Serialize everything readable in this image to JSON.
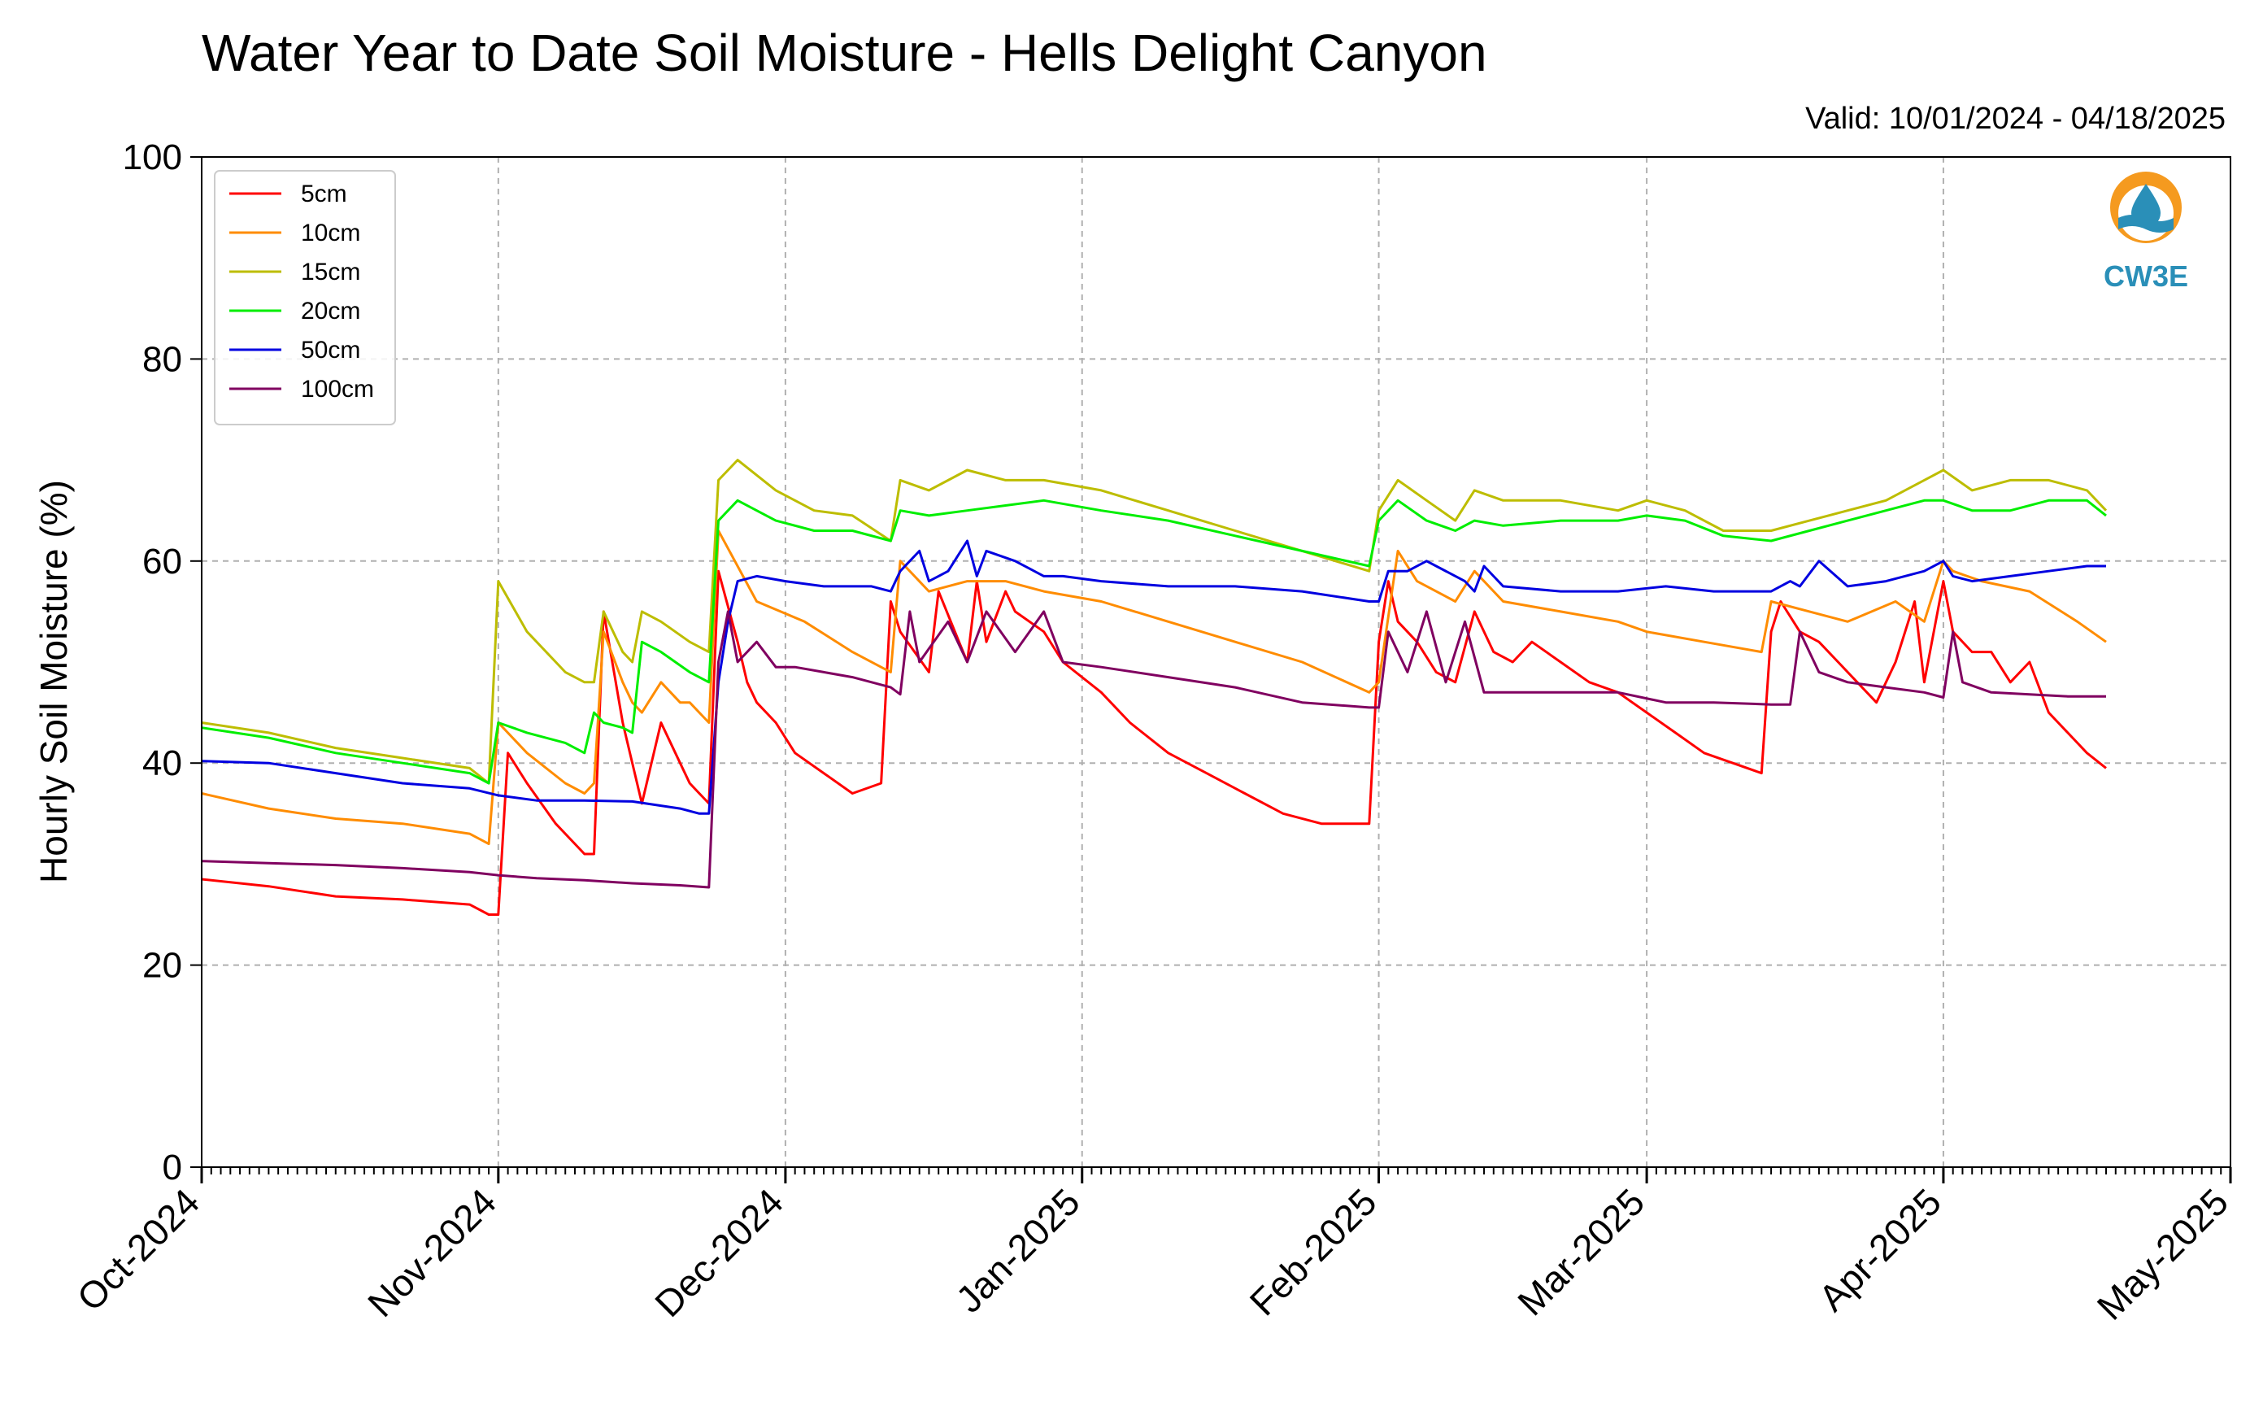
{
  "title": "Water Year to Date Soil Moisture - Hells Delight Canyon",
  "valid_label": "Valid: 10/01/2024 - 04/18/2025",
  "logo": {
    "text": "CW3E",
    "icon": "cw3e-water-drop-logo"
  },
  "chart_data": {
    "type": "line",
    "title": "Water Year to Date Soil Moisture - Hells Delight Canyon",
    "xlabel": "",
    "ylabel": "Hourly Soil Moisture (%)",
    "xlim": [
      "2024-10-01",
      "2025-05-01"
    ],
    "ylim": [
      0,
      100
    ],
    "yticks": [
      0,
      20,
      40,
      60,
      80,
      100
    ],
    "xticks": [
      "2024-10-01",
      "2024-11-01",
      "2024-12-01",
      "2025-01-01",
      "2025-02-01",
      "2025-03-01",
      "2025-04-01",
      "2025-05-01"
    ],
    "xtick_labels": [
      "Oct-2024",
      "Nov-2024",
      "Dec-2024",
      "Jan-2025",
      "Feb-2025",
      "Mar-2025",
      "Apr-2025",
      "May-2025"
    ],
    "grid": true,
    "legend": "top-left",
    "series": [
      {
        "name": "5cm",
        "color": "#ff0000",
        "x": [
          "2024-10-01",
          "2024-10-08",
          "2024-10-15",
          "2024-10-22",
          "2024-10-29",
          "2024-10-31",
          "2024-11-01",
          "2024-11-02",
          "2024-11-04",
          "2024-11-07",
          "2024-11-10",
          "2024-11-11",
          "2024-11-12",
          "2024-11-14",
          "2024-11-15",
          "2024-11-16",
          "2024-11-18",
          "2024-11-20",
          "2024-11-21",
          "2024-11-22",
          "2024-11-23",
          "2024-11-24",
          "2024-11-26",
          "2024-11-27",
          "2024-11-28",
          "2024-11-30",
          "2024-12-02",
          "2024-12-05",
          "2024-12-08",
          "2024-12-11",
          "2024-12-12",
          "2024-12-13",
          "2024-12-16",
          "2024-12-17",
          "2024-12-20",
          "2024-12-21",
          "2024-12-22",
          "2024-12-24",
          "2024-12-25",
          "2024-12-28",
          "2024-12-30",
          "2025-01-03",
          "2025-01-06",
          "2025-01-10",
          "2025-01-14",
          "2025-01-18",
          "2025-01-22",
          "2025-01-26",
          "2025-01-30",
          "2025-01-31",
          "2025-02-01",
          "2025-02-02",
          "2025-02-03",
          "2025-02-05",
          "2025-02-07",
          "2025-02-09",
          "2025-02-11",
          "2025-02-13",
          "2025-02-15",
          "2025-02-17",
          "2025-02-20",
          "2025-02-23",
          "2025-02-26",
          "2025-03-01",
          "2025-03-04",
          "2025-03-07",
          "2025-03-10",
          "2025-03-13",
          "2025-03-14",
          "2025-03-15",
          "2025-03-17",
          "2025-03-19",
          "2025-03-21",
          "2025-03-23",
          "2025-03-25",
          "2025-03-27",
          "2025-03-29",
          "2025-03-30",
          "2025-04-01",
          "2025-04-02",
          "2025-04-04",
          "2025-04-06",
          "2025-04-08",
          "2025-04-10",
          "2025-04-12",
          "2025-04-14",
          "2025-04-16",
          "2025-04-18"
        ],
        "y": [
          28.5,
          27.8,
          26.8,
          26.5,
          26,
          25,
          25,
          41,
          38,
          34,
          31,
          31,
          55,
          44,
          40,
          36,
          44,
          40,
          38,
          37,
          36,
          59,
          52,
          48,
          46,
          44,
          41,
          39,
          37,
          38,
          56,
          53,
          49,
          57,
          50,
          58,
          52,
          57,
          55,
          53,
          50,
          47,
          44,
          41,
          39,
          37,
          35,
          34,
          34,
          34,
          52,
          58,
          54,
          52,
          49,
          48,
          55,
          51,
          50,
          52,
          50,
          48,
          47,
          45,
          43,
          41,
          40,
          39,
          53,
          56,
          53,
          52,
          50,
          48,
          46,
          50,
          56,
          48,
          58,
          53,
          51,
          51,
          48,
          50,
          45,
          43,
          41,
          39.5
        ]
      },
      {
        "name": "10cm",
        "color": "#ff8c00",
        "x": [
          "2024-10-01",
          "2024-10-08",
          "2024-10-15",
          "2024-10-22",
          "2024-10-29",
          "2024-10-31",
          "2024-11-01",
          "2024-11-04",
          "2024-11-08",
          "2024-11-10",
          "2024-11-11",
          "2024-11-12",
          "2024-11-14",
          "2024-11-15",
          "2024-11-16",
          "2024-11-18",
          "2024-11-20",
          "2024-11-21",
          "2024-11-22",
          "2024-11-23",
          "2024-11-24",
          "2024-11-28",
          "2024-12-03",
          "2024-12-08",
          "2024-12-12",
          "2024-12-13",
          "2024-12-16",
          "2024-12-20",
          "2024-12-24",
          "2024-12-28",
          "2025-01-03",
          "2025-01-10",
          "2025-01-17",
          "2025-01-24",
          "2025-01-31",
          "2025-02-01",
          "2025-02-03",
          "2025-02-05",
          "2025-02-09",
          "2025-02-11",
          "2025-02-14",
          "2025-02-20",
          "2025-02-26",
          "2025-03-01",
          "2025-03-07",
          "2025-03-13",
          "2025-03-14",
          "2025-03-18",
          "2025-03-22",
          "2025-03-27",
          "2025-03-30",
          "2025-04-01",
          "2025-04-02",
          "2025-04-05",
          "2025-04-10",
          "2025-04-15",
          "2025-04-18"
        ],
        "y": [
          37,
          35.5,
          34.5,
          34,
          33,
          32,
          44,
          41,
          38,
          37,
          38,
          53,
          48,
          46,
          45,
          48,
          46,
          46,
          45,
          44,
          63,
          56,
          54,
          51,
          49,
          60,
          57,
          58,
          58,
          57,
          56,
          54,
          52,
          50,
          47,
          48,
          61,
          58,
          56,
          59,
          56,
          55,
          54,
          53,
          52,
          51,
          56,
          55,
          54,
          56,
          54,
          60,
          59,
          58,
          57,
          54,
          52
        ]
      },
      {
        "name": "15cm",
        "color": "#bdbd00",
        "x": [
          "2024-10-01",
          "2024-10-08",
          "2024-10-15",
          "2024-10-22",
          "2024-10-29",
          "2024-10-31",
          "2024-11-01",
          "2024-11-04",
          "2024-11-08",
          "2024-11-10",
          "2024-11-11",
          "2024-11-12",
          "2024-11-14",
          "2024-11-15",
          "2024-11-16",
          "2024-11-18",
          "2024-11-21",
          "2024-11-23",
          "2024-11-24",
          "2024-11-26",
          "2024-11-30",
          "2024-12-04",
          "2024-12-08",
          "2024-12-12",
          "2024-12-13",
          "2024-12-16",
          "2024-12-20",
          "2024-12-24",
          "2024-12-28",
          "2025-01-03",
          "2025-01-10",
          "2025-01-17",
          "2025-01-24",
          "2025-01-31",
          "2025-02-01",
          "2025-02-03",
          "2025-02-06",
          "2025-02-09",
          "2025-02-11",
          "2025-02-14",
          "2025-02-20",
          "2025-02-26",
          "2025-03-01",
          "2025-03-05",
          "2025-03-09",
          "2025-03-14",
          "2025-03-18",
          "2025-03-22",
          "2025-03-26",
          "2025-03-30",
          "2025-04-01",
          "2025-04-04",
          "2025-04-08",
          "2025-04-12",
          "2025-04-16",
          "2025-04-18"
        ],
        "y": [
          44,
          43,
          41.5,
          40.5,
          39.5,
          38,
          58,
          53,
          49,
          48,
          48,
          55,
          51,
          50,
          55,
          54,
          52,
          51,
          68,
          70,
          67,
          65,
          64.5,
          62,
          68,
          67,
          69,
          68,
          68,
          67,
          65,
          63,
          61,
          59,
          65,
          68,
          66,
          64,
          67,
          66,
          66,
          65,
          66,
          65,
          63,
          63,
          64,
          65,
          66,
          68,
          69,
          67,
          68,
          68,
          67,
          65
        ]
      },
      {
        "name": "20cm",
        "color": "#00ee00",
        "x": [
          "2024-10-01",
          "2024-10-08",
          "2024-10-15",
          "2024-10-22",
          "2024-10-29",
          "2024-10-31",
          "2024-11-01",
          "2024-11-04",
          "2024-11-08",
          "2024-11-10",
          "2024-11-11",
          "2024-11-12",
          "2024-11-14",
          "2024-11-15",
          "2024-11-16",
          "2024-11-18",
          "2024-11-21",
          "2024-11-23",
          "2024-11-24",
          "2024-11-26",
          "2024-11-30",
          "2024-12-04",
          "2024-12-08",
          "2024-12-12",
          "2024-12-13",
          "2024-12-16",
          "2024-12-20",
          "2024-12-24",
          "2024-12-28",
          "2025-01-03",
          "2025-01-10",
          "2025-01-17",
          "2025-01-24",
          "2025-01-31",
          "2025-02-01",
          "2025-02-03",
          "2025-02-06",
          "2025-02-09",
          "2025-02-11",
          "2025-02-14",
          "2025-02-20",
          "2025-02-26",
          "2025-03-01",
          "2025-03-05",
          "2025-03-09",
          "2025-03-14",
          "2025-03-18",
          "2025-03-22",
          "2025-03-26",
          "2025-03-30",
          "2025-04-01",
          "2025-04-04",
          "2025-04-08",
          "2025-04-12",
          "2025-04-16",
          "2025-04-18"
        ],
        "y": [
          43.5,
          42.5,
          41,
          40,
          39,
          38,
          44,
          43,
          42,
          41,
          45,
          44,
          43.5,
          43,
          52,
          51,
          49,
          48,
          64,
          66,
          64,
          63,
          63,
          62,
          65,
          64.5,
          65,
          65.5,
          66,
          65,
          64,
          62.5,
          61,
          59.5,
          64,
          66,
          64,
          63,
          64,
          63.5,
          64,
          64,
          64.5,
          64,
          62.5,
          62,
          63,
          64,
          65,
          66,
          66,
          65,
          65,
          66,
          66,
          64.5
        ]
      },
      {
        "name": "50cm",
        "color": "#0000e0",
        "x": [
          "2024-10-01",
          "2024-10-08",
          "2024-10-15",
          "2024-10-22",
          "2024-10-29",
          "2024-11-01",
          "2024-11-05",
          "2024-11-10",
          "2024-11-15",
          "2024-11-20",
          "2024-11-22",
          "2024-11-23",
          "2024-11-24",
          "2024-11-25",
          "2024-11-26",
          "2024-11-28",
          "2024-12-01",
          "2024-12-05",
          "2024-12-10",
          "2024-12-12",
          "2024-12-13",
          "2024-12-15",
          "2024-12-16",
          "2024-12-17",
          "2024-12-18",
          "2024-12-20",
          "2024-12-21",
          "2024-12-22",
          "2024-12-25",
          "2024-12-28",
          "2024-12-30",
          "2025-01-03",
          "2025-01-10",
          "2025-01-17",
          "2025-01-24",
          "2025-01-31",
          "2025-02-01",
          "2025-02-02",
          "2025-02-04",
          "2025-02-06",
          "2025-02-10",
          "2025-02-11",
          "2025-02-12",
          "2025-02-14",
          "2025-02-20",
          "2025-02-26",
          "2025-03-03",
          "2025-03-08",
          "2025-03-14",
          "2025-03-16",
          "2025-03-17",
          "2025-03-19",
          "2025-03-22",
          "2025-03-26",
          "2025-03-30",
          "2025-04-01",
          "2025-04-02",
          "2025-04-04",
          "2025-04-08",
          "2025-04-12",
          "2025-04-16",
          "2025-04-18"
        ],
        "y": [
          40.2,
          40,
          39,
          38,
          37.5,
          36.8,
          36.3,
          36.3,
          36.2,
          35.5,
          35,
          35,
          48,
          54,
          58,
          58.5,
          58,
          57.5,
          57.5,
          57,
          59,
          61,
          58,
          58.5,
          59,
          62,
          58.5,
          61,
          60,
          58.5,
          58.5,
          58,
          57.5,
          57.5,
          57,
          56,
          56,
          59,
          59,
          60,
          58,
          57,
          59.5,
          57.5,
          57,
          57,
          57.5,
          57,
          57,
          58,
          57.5,
          60,
          57.5,
          58,
          59,
          60,
          58.5,
          58,
          58.5,
          59,
          59.5,
          59.5
        ]
      },
      {
        "name": "100cm",
        "color": "#800060",
        "x": [
          "2024-10-01",
          "2024-10-08",
          "2024-10-15",
          "2024-10-22",
          "2024-10-29",
          "2024-11-01",
          "2024-11-05",
          "2024-11-10",
          "2024-11-15",
          "2024-11-20",
          "2024-11-23",
          "2024-11-24",
          "2024-11-25",
          "2024-11-26",
          "2024-11-28",
          "2024-11-30",
          "2024-12-02",
          "2024-12-05",
          "2024-12-08",
          "2024-12-12",
          "2024-12-13",
          "2024-12-14",
          "2024-12-15",
          "2024-12-18",
          "2024-12-20",
          "2024-12-22",
          "2024-12-25",
          "2024-12-28",
          "2024-12-30",
          "2025-01-03",
          "2025-01-10",
          "2025-01-17",
          "2025-01-24",
          "2025-01-31",
          "2025-02-01",
          "2025-02-02",
          "2025-02-04",
          "2025-02-06",
          "2025-02-08",
          "2025-02-10",
          "2025-02-12",
          "2025-02-15",
          "2025-02-20",
          "2025-02-26",
          "2025-03-03",
          "2025-03-08",
          "2025-03-14",
          "2025-03-16",
          "2025-03-17",
          "2025-03-19",
          "2025-03-22",
          "2025-03-26",
          "2025-03-30",
          "2025-04-01",
          "2025-04-02",
          "2025-04-03",
          "2025-04-06",
          "2025-04-10",
          "2025-04-14",
          "2025-04-18"
        ],
        "y": [
          30.3,
          30.1,
          29.9,
          29.6,
          29.2,
          28.9,
          28.6,
          28.4,
          28.1,
          27.9,
          27.7,
          50,
          55,
          50,
          52,
          49.5,
          49.5,
          49,
          48.5,
          47.5,
          46.8,
          55,
          50,
          54,
          50,
          55,
          51,
          55,
          50,
          49.5,
          48.5,
          47.5,
          46,
          45.5,
          45.5,
          53,
          49,
          55,
          48,
          54,
          47,
          47,
          47,
          47,
          46,
          46,
          45.8,
          45.8,
          53,
          49,
          48,
          47.5,
          47,
          46.5,
          53,
          48,
          47,
          46.8,
          46.6,
          46.6
        ]
      }
    ]
  }
}
